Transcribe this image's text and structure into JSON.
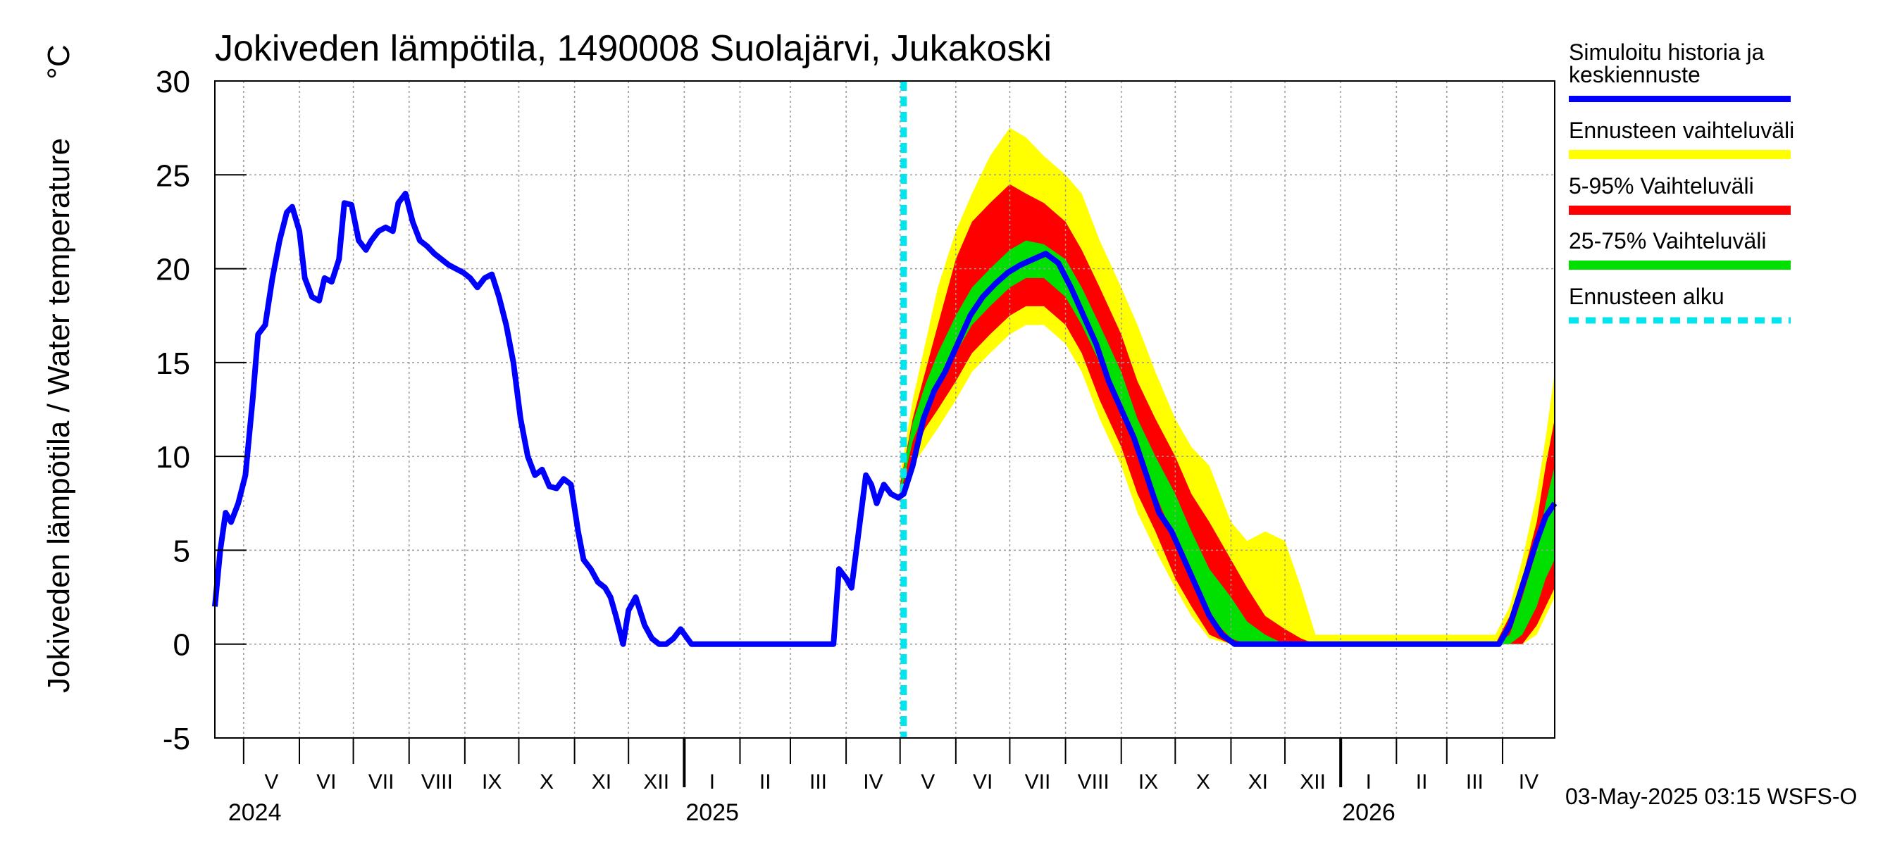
{
  "chart_data": {
    "type": "line",
    "title": "Jokiveden lämpötila, 1490008 Suolajärvi, Jukakoski",
    "ylabel": "Jokiveden lämpötila / Water temperature",
    "yunit": "°C",
    "ylim": [
      -5,
      30
    ],
    "yticks": [
      -5,
      0,
      5,
      10,
      15,
      20,
      25,
      30
    ],
    "xlim": [
      "2024-04-15",
      "2026-04-30"
    ],
    "grid": true,
    "legend_position": "right",
    "forecast_start": "2025-05-03",
    "months": [
      {
        "label": "V",
        "start": "2024-05-01"
      },
      {
        "label": "VI",
        "start": "2024-06-01"
      },
      {
        "label": "VII",
        "start": "2024-07-01"
      },
      {
        "label": "VIII",
        "start": "2024-08-01"
      },
      {
        "label": "IX",
        "start": "2024-09-01"
      },
      {
        "label": "X",
        "start": "2024-10-01"
      },
      {
        "label": "XI",
        "start": "2024-11-01"
      },
      {
        "label": "XII",
        "start": "2024-12-01"
      },
      {
        "label": "I",
        "start": "2025-01-01"
      },
      {
        "label": "II",
        "start": "2025-02-01"
      },
      {
        "label": "III",
        "start": "2025-03-01"
      },
      {
        "label": "IV",
        "start": "2025-04-01"
      },
      {
        "label": "V",
        "start": "2025-05-01"
      },
      {
        "label": "VI",
        "start": "2025-06-01"
      },
      {
        "label": "VII",
        "start": "2025-07-01"
      },
      {
        "label": "VIII",
        "start": "2025-08-01"
      },
      {
        "label": "IX",
        "start": "2025-09-01"
      },
      {
        "label": "X",
        "start": "2025-10-01"
      },
      {
        "label": "XI",
        "start": "2025-11-01"
      },
      {
        "label": "XII",
        "start": "2025-12-01"
      },
      {
        "label": "I",
        "start": "2026-01-01"
      },
      {
        "label": "II",
        "start": "2026-02-01"
      },
      {
        "label": "III",
        "start": "2026-03-01"
      },
      {
        "label": "IV",
        "start": "2026-04-01"
      }
    ],
    "years": [
      {
        "label": "2024",
        "date": "2024-05-01"
      },
      {
        "label": "2025",
        "date": "2025-01-01"
      },
      {
        "label": "2026",
        "date": "2026-01-01"
      }
    ],
    "series": [
      {
        "name": "Simuloitu historia ja keskiennuste",
        "color": "#0000ff",
        "x": [
          "2024-04-15",
          "2024-04-18",
          "2024-04-21",
          "2024-04-24",
          "2024-04-28",
          "2024-05-02",
          "2024-05-06",
          "2024-05-09",
          "2024-05-13",
          "2024-05-17",
          "2024-05-21",
          "2024-05-25",
          "2024-05-28",
          "2024-06-01",
          "2024-06-04",
          "2024-06-08",
          "2024-06-12",
          "2024-06-15",
          "2024-06-19",
          "2024-06-23",
          "2024-06-26",
          "2024-06-30",
          "2024-07-04",
          "2024-07-08",
          "2024-07-11",
          "2024-07-15",
          "2024-07-19",
          "2024-07-23",
          "2024-07-26",
          "2024-07-30",
          "2024-08-03",
          "2024-08-07",
          "2024-08-11",
          "2024-08-15",
          "2024-08-19",
          "2024-08-23",
          "2024-08-27",
          "2024-08-31",
          "2024-09-04",
          "2024-09-08",
          "2024-09-12",
          "2024-09-16",
          "2024-09-20",
          "2024-09-24",
          "2024-09-28",
          "2024-10-02",
          "2024-10-06",
          "2024-10-10",
          "2024-10-14",
          "2024-10-18",
          "2024-10-22",
          "2024-10-26",
          "2024-10-30",
          "2024-11-03",
          "2024-11-06",
          "2024-11-10",
          "2024-11-14",
          "2024-11-18",
          "2024-11-21",
          "2024-11-24",
          "2024-11-28",
          "2024-12-01",
          "2024-12-05",
          "2024-12-10",
          "2024-12-14",
          "2024-12-18",
          "2024-12-22",
          "2024-12-26",
          "2024-12-30",
          "2025-01-05",
          "2025-02-01",
          "2025-03-01",
          "2025-03-25",
          "2025-03-28",
          "2025-04-01",
          "2025-04-04",
          "2025-04-08",
          "2025-04-12",
          "2025-04-15",
          "2025-04-18",
          "2025-04-22",
          "2025-04-26",
          "2025-04-30",
          "2025-05-03",
          "2025-05-08",
          "2025-05-14",
          "2025-05-20",
          "2025-05-26",
          "2025-06-02",
          "2025-06-09",
          "2025-06-16",
          "2025-06-23",
          "2025-06-30",
          "2025-07-07",
          "2025-07-14",
          "2025-07-21",
          "2025-07-28",
          "2025-08-04",
          "2025-08-11",
          "2025-08-18",
          "2025-08-25",
          "2025-09-01",
          "2025-09-08",
          "2025-09-15",
          "2025-09-22",
          "2025-09-29",
          "2025-10-06",
          "2025-10-13",
          "2025-10-20",
          "2025-10-27",
          "2025-11-03",
          "2025-11-10",
          "2025-11-14",
          "2025-12-01",
          "2026-01-01",
          "2026-02-01",
          "2026-03-01",
          "2026-03-30",
          "2026-04-05",
          "2026-04-10",
          "2026-04-15",
          "2026-04-20",
          "2026-04-25",
          "2026-04-30"
        ],
        "y": [
          2,
          5,
          7,
          6.5,
          7.5,
          9,
          13,
          16.5,
          17,
          19.5,
          21.5,
          23,
          23.3,
          22,
          19.5,
          18.5,
          18.3,
          19.5,
          19.3,
          20.5,
          23.5,
          23.4,
          21.5,
          21,
          21.5,
          22,
          22.2,
          22,
          23.5,
          24,
          22.5,
          21.5,
          21.2,
          20.8,
          20.5,
          20.2,
          20,
          19.8,
          19.5,
          19,
          19.5,
          19.7,
          18.5,
          17,
          15,
          12,
          10,
          9,
          9.3,
          8.4,
          8.3,
          8.8,
          8.5,
          6,
          4.5,
          4,
          3.3,
          3,
          2.5,
          1.5,
          0,
          1.8,
          2.5,
          1,
          0.3,
          0,
          0,
          0.3,
          0.8,
          0,
          0,
          0,
          0,
          4,
          3.5,
          3,
          6,
          9,
          8.5,
          7.5,
          8.5,
          8,
          7.8,
          8,
          9.5,
          12,
          13.5,
          14.5,
          16,
          17.5,
          18.5,
          19.2,
          19.8,
          20.2,
          20.5,
          20.8,
          20.3,
          19,
          17.5,
          16,
          14,
          12.5,
          11,
          9,
          7,
          6,
          4.5,
          3,
          1.5,
          0.5,
          0,
          0,
          0,
          0,
          0,
          0,
          0,
          0,
          1,
          2.5,
          4,
          5.5,
          6.8,
          7.5
        ]
      },
      {
        "name": "Ennusteen vaihteluväli",
        "color": "#ffff00",
        "band": true,
        "x": [
          "2025-05-01",
          "2025-05-08",
          "2025-05-15",
          "2025-05-22",
          "2025-06-01",
          "2025-06-10",
          "2025-06-20",
          "2025-07-01",
          "2025-07-10",
          "2025-07-20",
          "2025-08-01",
          "2025-08-10",
          "2025-08-20",
          "2025-09-01",
          "2025-09-10",
          "2025-09-20",
          "2025-10-01",
          "2025-10-10",
          "2025-10-20",
          "2025-11-01",
          "2025-11-10",
          "2025-11-20",
          "2025-12-01",
          "2025-12-10",
          "2025-12-18",
          "2026-03-28",
          "2026-04-05",
          "2026-04-12",
          "2026-04-20",
          "2026-04-25",
          "2026-04-30"
        ],
        "low": [
          7.5,
          9.5,
          10.5,
          11.5,
          13,
          14.5,
          15.5,
          16.5,
          17,
          17,
          16,
          14.5,
          12,
          9.5,
          7,
          5,
          3,
          1.5,
          0.3,
          0,
          0,
          0,
          0,
          0,
          0,
          0,
          0,
          0,
          0.5,
          1.5,
          2.5
        ],
        "high": [
          9,
          13,
          16,
          19,
          22,
          24,
          26,
          27.5,
          27,
          26,
          25,
          24,
          21.5,
          19,
          17,
          14.5,
          12,
          10.5,
          9.5,
          6.5,
          5.5,
          6,
          5.5,
          3,
          0.5,
          0.5,
          2,
          4.5,
          8,
          11,
          14.5
        ]
      },
      {
        "name": "5-95% Vaihteluväli",
        "color": "#ff0000",
        "band": true,
        "x": [
          "2025-05-01",
          "2025-05-08",
          "2025-05-15",
          "2025-05-22",
          "2025-06-01",
          "2025-06-10",
          "2025-06-20",
          "2025-07-01",
          "2025-07-10",
          "2025-07-20",
          "2025-08-01",
          "2025-08-10",
          "2025-08-20",
          "2025-09-01",
          "2025-09-10",
          "2025-09-20",
          "2025-10-01",
          "2025-10-10",
          "2025-10-20",
          "2025-11-01",
          "2025-11-10",
          "2025-11-20",
          "2025-12-01",
          "2025-12-10",
          "2025-12-18",
          "2026-03-28",
          "2026-04-05",
          "2026-04-12",
          "2026-04-20",
          "2026-04-25",
          "2026-04-30"
        ],
        "low": [
          7.8,
          10,
          11.5,
          12.5,
          14,
          15.5,
          16.5,
          17.5,
          18,
          18,
          17,
          15.5,
          13,
          10.5,
          8,
          6,
          3.5,
          2,
          0.5,
          0,
          0,
          0,
          0,
          0,
          0,
          0,
          0,
          0,
          1,
          2,
          3
        ],
        "high": [
          8.5,
          12,
          14.5,
          17,
          20.5,
          22.5,
          23.5,
          24.5,
          24,
          23.5,
          22.5,
          21,
          19,
          16.5,
          14,
          12,
          10,
          8,
          6.5,
          4.5,
          3,
          1.5,
          0.8,
          0.3,
          0,
          0,
          1.5,
          3.5,
          6.5,
          9.5,
          12
        ]
      },
      {
        "name": "25-75% Vaihteluväli",
        "color": "#00e000",
        "band": true,
        "x": [
          "2025-05-01",
          "2025-05-08",
          "2025-05-15",
          "2025-05-22",
          "2025-06-01",
          "2025-06-10",
          "2025-06-20",
          "2025-07-01",
          "2025-07-10",
          "2025-07-20",
          "2025-08-01",
          "2025-08-10",
          "2025-08-20",
          "2025-09-01",
          "2025-09-10",
          "2025-09-20",
          "2025-10-01",
          "2025-10-10",
          "2025-10-20",
          "2025-11-01",
          "2025-11-10",
          "2025-11-20",
          "2025-12-01",
          "2025-12-10",
          "2025-12-18",
          "2026-03-28",
          "2026-04-05",
          "2026-04-12",
          "2026-04-20",
          "2026-04-25",
          "2026-04-30"
        ],
        "low": [
          7.9,
          10.8,
          12.5,
          14,
          15.5,
          17,
          18,
          19,
          19.5,
          19.5,
          18.5,
          17,
          15,
          12.5,
          10,
          8,
          5.5,
          3.5,
          1.5,
          0.3,
          0,
          0,
          0,
          0,
          0,
          0,
          0,
          0.5,
          2,
          3.5,
          4.5
        ],
        "high": [
          8.3,
          11.8,
          13.8,
          15.5,
          17.5,
          19,
          20,
          21,
          21.5,
          21.3,
          20.5,
          19,
          17,
          14.5,
          12,
          10,
          8,
          6,
          4,
          2.5,
          1.2,
          0.5,
          0,
          0,
          0,
          0,
          0.5,
          2.5,
          5,
          7.5,
          9.5
        ]
      }
    ]
  },
  "legend": {
    "sim_label_1": "Simuloitu historia ja",
    "sim_label_2": "keskiennuste",
    "range_label": "Ennusteen vaihteluväli",
    "p595_label": "5-95% Vaihteluväli",
    "p2575_label": "25-75% Vaihteluväli",
    "start_label": "Ennusteen alku",
    "start_color": "#00e5ee"
  },
  "footer": "03-May-2025 03:15 WSFS-O"
}
